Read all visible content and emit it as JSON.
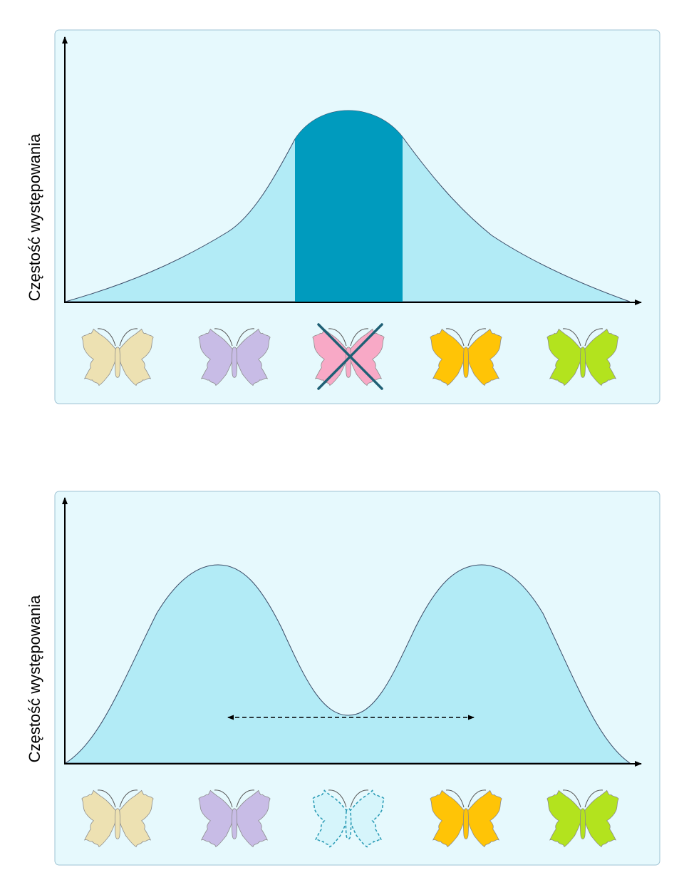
{
  "panels": [
    {
      "id": "top",
      "ylabel": "Częstość występowania",
      "colors": {
        "panel": "#e6f9fd",
        "curve_fill": "#b2ebf6",
        "highlight": "#009bbe"
      },
      "butterflies": [
        {
          "color": "#ede1b2",
          "state": "normal"
        },
        {
          "color": "#c8bce6",
          "state": "normal"
        },
        {
          "color": "#f8a9c6",
          "state": "crossed"
        },
        {
          "color": "#ffc406",
          "state": "normal"
        },
        {
          "color": "#b3e31e",
          "state": "normal"
        }
      ]
    },
    {
      "id": "bottom",
      "ylabel": "Częstość występowania",
      "colors": {
        "panel": "#e6f9fd",
        "curve_fill": "#b2ebf6"
      },
      "butterflies": [
        {
          "color": "#ede1b2",
          "state": "normal"
        },
        {
          "color": "#c8bce6",
          "state": "normal"
        },
        {
          "color": "#d6f5fb",
          "state": "dashed"
        },
        {
          "color": "#ffc406",
          "state": "normal"
        },
        {
          "color": "#b3e31e",
          "state": "normal"
        }
      ]
    }
  ],
  "icons": {
    "cross": "cross-mark-icon",
    "arrow": "double-arrow-icon",
    "butterfly": "butterfly-icon"
  }
}
